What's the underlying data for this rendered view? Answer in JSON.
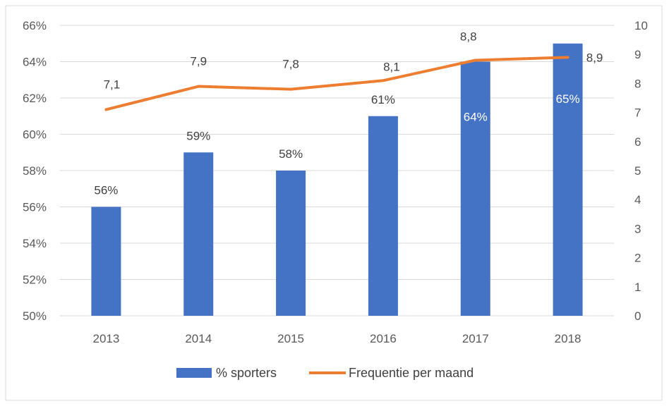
{
  "chart_data": {
    "type": "bar+line",
    "categories": [
      "2013",
      "2014",
      "2015",
      "2016",
      "2017",
      "2018"
    ],
    "series": [
      {
        "name": "% sporters",
        "type": "bar",
        "axis": "left",
        "color": "#4472C4",
        "values": [
          56,
          59,
          58,
          61,
          64,
          65
        ],
        "labels": [
          "56%",
          "59%",
          "58%",
          "61%",
          "64%",
          "65%"
        ]
      },
      {
        "name": "Frequentie per maand",
        "type": "line",
        "axis": "right",
        "color": "#ED7D31",
        "values": [
          7.1,
          7.9,
          7.8,
          8.1,
          8.8,
          8.9
        ],
        "labels": [
          "7,1",
          "7,9",
          "7,8",
          "8,1",
          "8,8",
          "8,9"
        ]
      }
    ],
    "left_axis": {
      "min": 50,
      "max": 66,
      "step": 2,
      "tick_labels": [
        "50%",
        "52%",
        "54%",
        "56%",
        "58%",
        "60%",
        "62%",
        "64%",
        "66%"
      ]
    },
    "right_axis": {
      "min": 0,
      "max": 10,
      "step": 1,
      "tick_labels": [
        "0",
        "1",
        "2",
        "3",
        "4",
        "5",
        "6",
        "7",
        "8",
        "9",
        "10"
      ]
    },
    "grid": true,
    "legend_position": "bottom",
    "legend": [
      "% sporters",
      "Frequentie per maand"
    ]
  }
}
